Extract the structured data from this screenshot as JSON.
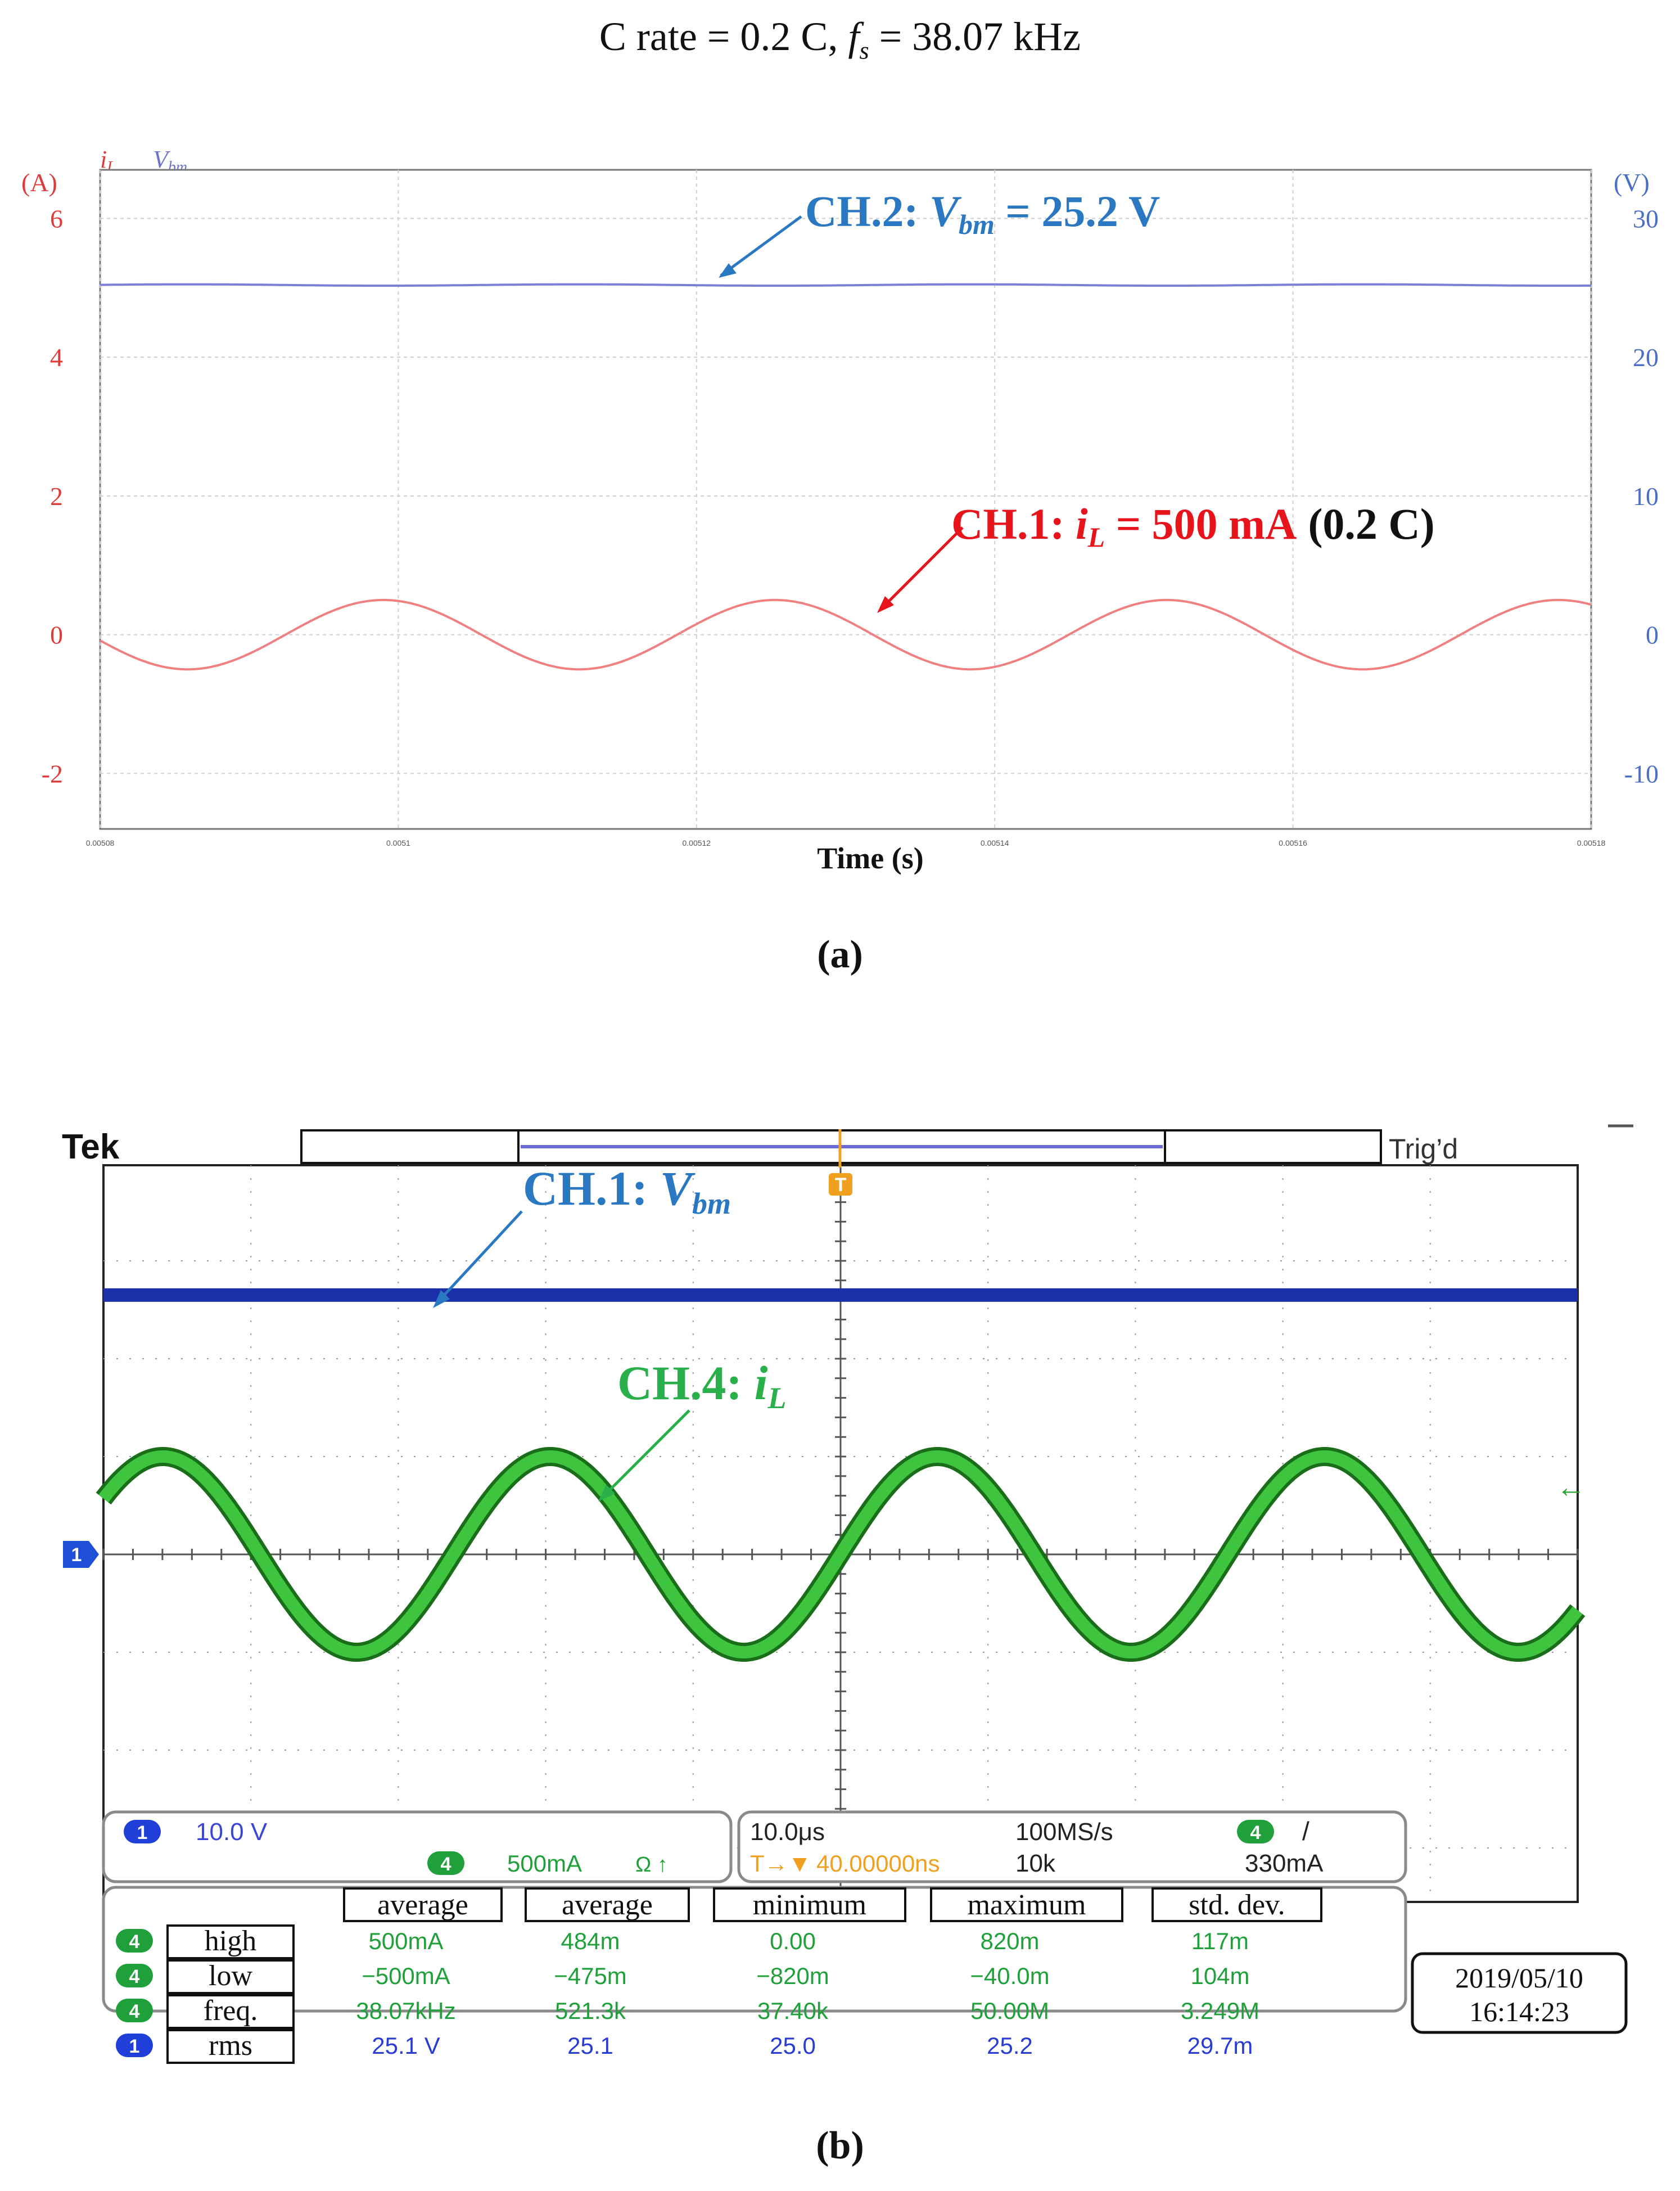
{
  "headline": {
    "c_rate_label": "C rate = 0.2 C, ",
    "fs_symbol": "f",
    "fs_sub": "s",
    "fs_value": " = 38.07 kHz"
  },
  "chart_data": [
    {
      "type": "line",
      "panel_caption": "(a)",
      "legend": {
        "placement": "top-left",
        "iL": "i",
        "iL_sub": "L",
        "Vbm": "V",
        "Vbm_sub": "bm"
      },
      "xlabel": "Time (s)",
      "x_ticks": [
        "0.00508",
        "0.0051",
        "0.00512",
        "0.00514",
        "0.00516",
        "0.00518"
      ],
      "xlim": [
        0.00508,
        0.00518
      ],
      "left_axis": {
        "unit": "(A)",
        "ticks": [
          "6",
          "4",
          "2",
          "0",
          "-2"
        ],
        "ylim": [
          -2.8,
          6.7
        ]
      },
      "right_axis": {
        "unit": "(V)",
        "ticks": [
          "30",
          "20",
          "10",
          "0",
          "-10"
        ],
        "ylim": [
          -14,
          33.5
        ]
      },
      "grid": true,
      "series": [
        {
          "name": "iL",
          "axis": "left",
          "color": "#f08080",
          "kind": "sine",
          "amplitude": 0.5,
          "offset": 0.0,
          "frequency_hz": 38070,
          "phase_ref_x": 0.005099,
          "x_start": 0.00508,
          "x_end": 0.00518
        },
        {
          "name": "Vbm",
          "axis": "right",
          "color": "#7b7fd6",
          "kind": "flat",
          "value": 25.2,
          "ripple": 0.05
        }
      ],
      "annotations": [
        {
          "text_prefix": "CH.2: ",
          "symbol": "V",
          "sub": "bm",
          "text_suffix": " = 25.2 V",
          "color": "#2b78c2"
        },
        {
          "text_prefix": "CH.1: ",
          "symbol": "i",
          "sub": "L",
          "text_suffix": " = 500 mA",
          "extra": "(0.2 C)",
          "color": "#e8141c",
          "extra_color": "#111111"
        }
      ]
    },
    {
      "type": "line",
      "panel_caption": "(b)",
      "scope": {
        "brand": "Tek",
        "status": "Trig’d",
        "trigger_marker": "T",
        "ch1_marker": "1",
        "date": "2019/05/10",
        "time": "16:14:23",
        "ch4_arrow": "←"
      },
      "grid": {
        "divisions_x": 10,
        "divisions_y": 8
      },
      "series": [
        {
          "name": "CH.1: Vbm",
          "color": "#1b2fa8",
          "kind": "flat",
          "level_div": 2.65
        },
        {
          "name": "CH.4: iL",
          "color": "#2ea12e",
          "kind": "sine",
          "amplitude_div": 1.0,
          "offset_div": 0.0,
          "periods_on_screen": 3.807,
          "phase_at_trigger": 0.0
        }
      ],
      "annotations": [
        {
          "text_prefix": "CH.1: ",
          "symbol": "V",
          "sub": "bm",
          "color": "#2b78c2"
        },
        {
          "text_prefix": "CH.4: ",
          "symbol": "i",
          "sub": "L",
          "color": "#29b04a"
        }
      ],
      "settings": {
        "ch1_badge": "1",
        "ch1_scale": "10.0 V",
        "ch4_badge": "4",
        "ch4_scale": "500mA",
        "ch4_coupling": "Ω ↑",
        "timebase": "10.0μs",
        "sample_rate": "100MS/s",
        "trig_badge": "4",
        "trig_slope": "/",
        "trig_pos_marker": "T→▼",
        "trig_pos": "40.00000ns",
        "record_length": "10k",
        "trig_level": "330mA"
      },
      "measurements": {
        "headers": [
          "average",
          "average",
          "minimum",
          "maximum",
          "std. dev."
        ],
        "rows": [
          {
            "badge": "4",
            "name": "high",
            "color": "#1fa03a",
            "values": [
              "500mA",
              "484m",
              "0.00",
              "820m",
              "117m"
            ]
          },
          {
            "badge": "4",
            "name": "low",
            "color": "#1fa03a",
            "values": [
              "−500mA",
              "−475m",
              "−820m",
              "−40.0m",
              "104m"
            ]
          },
          {
            "badge": "4",
            "name": "freq.",
            "color": "#1fa03a",
            "values": [
              "38.07kHz",
              "521.3k",
              "37.40k",
              "50.00M",
              "3.249M"
            ]
          },
          {
            "badge": "1",
            "name": "rms",
            "color": "#2a3dd1",
            "values": [
              "25.1 V",
              "25.1",
              "25.0",
              "25.2",
              "29.7m"
            ]
          }
        ]
      }
    }
  ]
}
